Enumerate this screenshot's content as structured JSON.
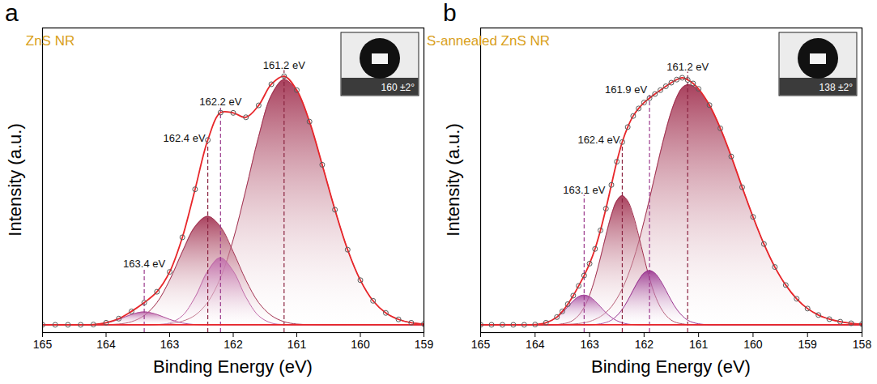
{
  "chart_data": [
    {
      "panel": "a",
      "type": "line",
      "title": "ZnS NR",
      "x_label": "Binding Energy (eV)",
      "y_label": "Intensity (a.u.)",
      "inset_label": "160 ±2°",
      "x": [
        165,
        164.8,
        164.6,
        164.4,
        164.2,
        164,
        163.8,
        163.6,
        163.4,
        163.2,
        163,
        162.8,
        162.6,
        162.4,
        162.2,
        162,
        161.8,
        161.6,
        161.4,
        161.2,
        161,
        160.8,
        160.6,
        160.4,
        160.2,
        160,
        159.8,
        159.6,
        159.4,
        159.2,
        159
      ],
      "xlim": [
        165,
        159
      ],
      "xticks": [
        165,
        164,
        163,
        162,
        161,
        160,
        159
      ],
      "ylim": [
        -3,
        115
      ],
      "tick_labels": "x",
      "series": [
        {
          "type": "area",
          "color": "#a1304f",
          "values": [
            0,
            0,
            0,
            0,
            0,
            0,
            0,
            0,
            0,
            0.1,
            0.4,
            1.4,
            3.7,
            8.8,
            18.2,
            33.0,
            52.4,
            72.9,
            88.9,
            95,
            90.6,
            78.6,
            62.0,
            44.6,
            29.1,
            17.3,
            9.3,
            4.6,
            2.1,
            0.8,
            0.3
          ]
        },
        {
          "type": "area",
          "color": "#a1304f",
          "values": [
            0,
            0,
            0,
            0,
            0,
            0.1,
            0.3,
            1.2,
            3.6,
            8.6,
            17.3,
            28.3,
            38.0,
            42,
            38.0,
            28.3,
            17.3,
            8.6,
            3.6,
            1.2,
            0.3,
            0.1,
            0,
            0,
            0,
            0,
            0,
            0,
            0,
            0,
            0
          ]
        },
        {
          "type": "area",
          "color": "#c06aa8",
          "values": [
            0,
            0,
            0,
            0,
            0,
            0,
            0,
            0,
            0,
            0.1,
            0.7,
            3.5,
            10.7,
            20.8,
            26,
            20.8,
            10.7,
            3.5,
            0.7,
            0.1,
            0,
            0,
            0,
            0,
            0,
            0,
            0,
            0,
            0,
            0,
            0
          ]
        },
        {
          "type": "area",
          "color": "#b0509a",
          "values": [
            0,
            0,
            0,
            0,
            0.1,
            0.7,
            2.1,
            4.0,
            5,
            4.0,
            2.1,
            0.7,
            0.1,
            0,
            0,
            0,
            0,
            0,
            0,
            0,
            0,
            0,
            0,
            0,
            0,
            0,
            0,
            0,
            0,
            0,
            0
          ]
        },
        {
          "type": "line",
          "color": "#e8262a",
          "marker": "circle",
          "values": [
            0,
            0,
            0,
            0,
            0.1,
            0.8,
            2.4,
            5.2,
            8.6,
            12.8,
            20.5,
            33.9,
            52.5,
            71.6,
            82.2,
            82.1,
            80.4,
            85.0,
            93.2,
            96.3,
            90.9,
            78.7,
            62.0,
            44.6,
            29.1,
            17.3,
            9.3,
            4.6,
            2.1,
            0.8,
            0.3
          ]
        },
        {
          "type": "line",
          "color": "#e8262a",
          "values": [
            0,
            0,
            0,
            0,
            0,
            0,
            0,
            0,
            0,
            0,
            0,
            0,
            0,
            0,
            0,
            0,
            0,
            0,
            0,
            0,
            0,
            0,
            0,
            0,
            0,
            0,
            0,
            0,
            0,
            0,
            0
          ]
        }
      ],
      "annotations": [
        {
          "x": 161.2,
          "text": "161.2 eV",
          "color": "#8b2340"
        },
        {
          "x": 162.4,
          "text": "162.4 eV",
          "color": "#8b2340"
        },
        {
          "x": 162.2,
          "text": "162.2 eV",
          "color": "#9b3a8c"
        },
        {
          "x": 163.4,
          "text": "163.4 eV",
          "color": "#9b3a8c"
        }
      ]
    },
    {
      "panel": "b",
      "type": "line",
      "title": "S-annealed ZnS NR",
      "x_label": "Binding Energy (eV)",
      "y_label": "Intensity (a.u.)",
      "inset_label": "138 ±2°",
      "x": [
        165,
        164.8,
        164.6,
        164.4,
        164.2,
        164,
        163.8,
        163.6,
        163.5,
        163.4,
        163.3,
        163.2,
        163.1,
        163,
        162.9,
        162.8,
        162.7,
        162.6,
        162.5,
        162.4,
        162.3,
        162.2,
        162.1,
        162,
        161.9,
        161.8,
        161.7,
        161.6,
        161.5,
        161.4,
        161.3,
        161.2,
        161.1,
        161,
        160.8,
        160.6,
        160.4,
        160.2,
        160,
        159.8,
        159.6,
        159.4,
        159.2,
        159,
        158.8,
        158.6,
        158.4,
        158.2,
        158
      ],
      "xlim": [
        165,
        158
      ],
      "xticks": [
        165,
        164,
        163,
        162,
        161,
        160,
        159,
        158
      ],
      "ylim": [
        -3,
        115
      ],
      "tick_labels": "x",
      "series": [
        {
          "type": "area",
          "color": "#a1304f",
          "values": [
            0,
            0,
            0,
            0,
            0,
            0,
            0,
            0,
            0.1,
            0.2,
            0.3,
            0.5,
            0.8,
            1.3,
            2.1,
            3.2,
            4.8,
            7.0,
            10.1,
            14.0,
            18.9,
            24.9,
            32.0,
            40.1,
            48.8,
            57.9,
            66.9,
            75.3,
            82.6,
            88.2,
            91.8,
            93,
            92.5,
            91.0,
            85.1,
            76.1,
            65.2,
            53.3,
            41.8,
            31.3,
            22.4,
            15.4,
            10.1,
            6.3,
            3.8,
            2.2,
            1.2,
            0.6,
            0.3
          ]
        },
        {
          "type": "area",
          "color": "#a1304f",
          "values": [
            0,
            0,
            0,
            0,
            0,
            0,
            0,
            0.1,
            0.4,
            0.8,
            1.8,
            3.7,
            6.8,
            11.5,
            18.0,
            26.0,
            34.6,
            42.5,
            48.0,
            50,
            48.0,
            42.5,
            34.6,
            26.0,
            18.0,
            11.5,
            6.8,
            3.7,
            1.8,
            0.8,
            0.4,
            0.1,
            0.1,
            0,
            0,
            0,
            0,
            0,
            0,
            0,
            0,
            0,
            0,
            0,
            0,
            0,
            0,
            0,
            0
          ]
        },
        {
          "type": "area",
          "color": "#9a3590",
          "values": [
            0,
            0,
            0,
            0,
            0,
            0,
            0,
            0,
            0,
            0,
            0,
            0,
            0,
            0,
            0.1,
            0.4,
            0.9,
            1.8,
            3.5,
            6.0,
            9.4,
            13.4,
            17.2,
            20.0,
            21,
            20.0,
            17.2,
            13.4,
            9.4,
            6.0,
            3.5,
            1.8,
            0.9,
            0.4,
            0,
            0,
            0,
            0,
            0,
            0,
            0,
            0,
            0,
            0,
            0,
            0,
            0,
            0,
            0
          ]
        },
        {
          "type": "area",
          "color": "#a5479d",
          "values": [
            0,
            0,
            0,
            0,
            0,
            0.1,
            0.8,
            2.9,
            4.7,
            7.0,
            9.2,
            10.9,
            11.5,
            10.9,
            9.2,
            7.0,
            4.7,
            2.9,
            1.6,
            0.8,
            0.3,
            0.1,
            0,
            0,
            0,
            0,
            0,
            0,
            0,
            0,
            0,
            0,
            0,
            0,
            0,
            0,
            0,
            0,
            0,
            0,
            0,
            0,
            0,
            0,
            0,
            0,
            0,
            0,
            0
          ]
        },
        {
          "type": "line",
          "color": "#e8262a",
          "marker": "circle",
          "values": [
            0,
            0,
            0,
            0,
            0,
            0.1,
            0.8,
            3.0,
            5.2,
            8.0,
            11.3,
            15.1,
            19.1,
            23.7,
            29.4,
            36.6,
            45.0,
            54.2,
            63.2,
            70.8,
            76.6,
            80.9,
            83.8,
            86.1,
            87.8,
            89.4,
            90.9,
            92.4,
            93.8,
            95.0,
            95.7,
            94.9,
            93.5,
            91.4,
            85.1,
            76.1,
            65.2,
            53.3,
            41.8,
            31.3,
            22.4,
            15.4,
            10.1,
            6.3,
            3.8,
            2.2,
            1.2,
            0.6,
            0.3
          ]
        },
        {
          "type": "line",
          "color": "#e8262a",
          "values": [
            0,
            0,
            0,
            0,
            0,
            0,
            0,
            0,
            0,
            0,
            0,
            0,
            0,
            0,
            0,
            0,
            0,
            0,
            0,
            0,
            0,
            0,
            0,
            0,
            0,
            0,
            0,
            0,
            0,
            0,
            0,
            0,
            0,
            0,
            0,
            0,
            0,
            0,
            0,
            0,
            0,
            0,
            0,
            0,
            0,
            0,
            0,
            0,
            0
          ]
        }
      ],
      "annotations": [
        {
          "x": 161.2,
          "text": "161.2 eV",
          "color": "#8b2340"
        },
        {
          "x": 161.9,
          "text": "161.9 eV",
          "color": "#9b3a8c"
        },
        {
          "x": 162.4,
          "text": "162.4 eV",
          "color": "#8b2340"
        },
        {
          "x": 163.1,
          "text": "163.1 eV",
          "color": "#9b3a8c"
        }
      ]
    }
  ]
}
